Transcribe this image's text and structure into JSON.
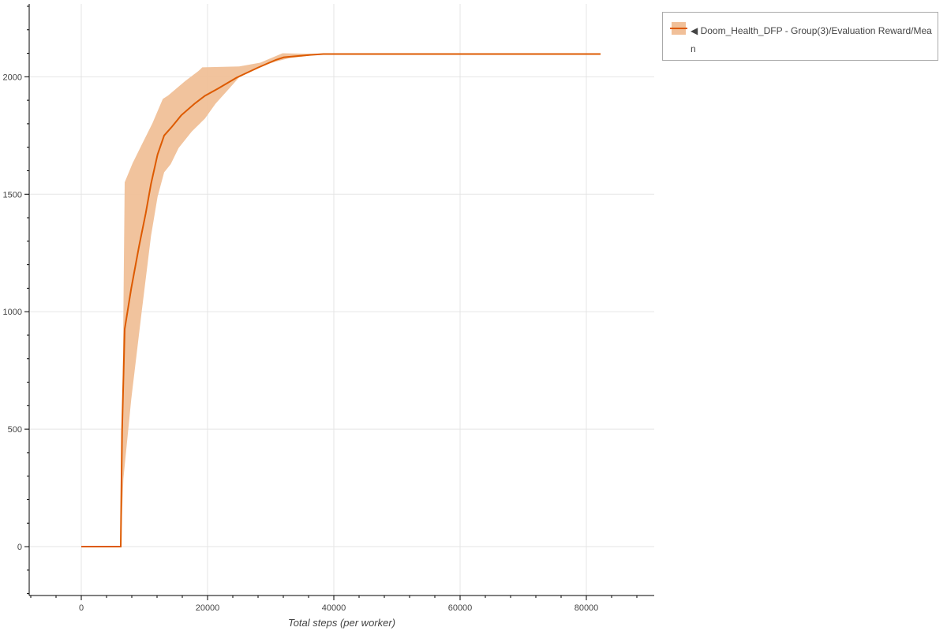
{
  "chart_data": {
    "type": "line",
    "title": "",
    "xlabel": "Total steps (per worker)",
    "ylabel": "",
    "xlim": [
      -8125,
      90750
    ],
    "ylim": [
      -208,
      2310
    ],
    "x_ticks": [
      0,
      20000,
      40000,
      60000,
      80000
    ],
    "x_tick_labels": [
      "0",
      "20000",
      "40000",
      "60000",
      "80000"
    ],
    "y_ticks": [
      0,
      500,
      1000,
      1500,
      2000
    ],
    "y_tick_labels": [
      "0",
      "500",
      "1000",
      "1500",
      "2000"
    ],
    "grid": true,
    "legend_placement": "right-outside-top",
    "colors": {
      "line": "#dd5a00",
      "band": "#f0c098"
    },
    "series": [
      {
        "name": "◀ Doom_Health_DFP - Group(3)/Evaluation Reward/Mean",
        "mean": [
          [
            0,
            0
          ],
          [
            6250,
            0
          ],
          [
            6458,
            489
          ],
          [
            6875,
            926
          ],
          [
            7917,
            1100
          ],
          [
            9167,
            1281
          ],
          [
            10208,
            1419
          ],
          [
            11042,
            1544
          ],
          [
            12083,
            1669
          ],
          [
            13125,
            1750
          ],
          [
            14375,
            1788
          ],
          [
            15833,
            1836
          ],
          [
            17917,
            1885
          ],
          [
            19583,
            1919
          ],
          [
            21667,
            1950
          ],
          [
            24583,
            1996
          ],
          [
            27917,
            2038
          ],
          [
            30833,
            2072
          ],
          [
            32083,
            2083
          ],
          [
            36250,
            2093
          ],
          [
            38333,
            2097
          ],
          [
            82250,
            2097
          ]
        ],
        "upper": [
          [
            6300,
            0
          ],
          [
            6875,
            1551
          ],
          [
            8125,
            1632
          ],
          [
            9583,
            1711
          ],
          [
            11250,
            1801
          ],
          [
            12917,
            1906
          ],
          [
            13750,
            1920
          ],
          [
            16458,
            1982
          ],
          [
            18542,
            2024
          ],
          [
            19167,
            2040
          ],
          [
            25000,
            2044
          ],
          [
            28333,
            2060
          ],
          [
            31875,
            2100
          ],
          [
            38333,
            2097
          ],
          [
            82250,
            2097
          ]
        ],
        "lower": [
          [
            6250,
            0
          ],
          [
            6667,
            288
          ],
          [
            7917,
            628
          ],
          [
            9583,
            1003
          ],
          [
            11042,
            1322
          ],
          [
            12083,
            1489
          ],
          [
            13125,
            1593
          ],
          [
            14167,
            1628
          ],
          [
            15417,
            1697
          ],
          [
            17500,
            1767
          ],
          [
            19583,
            1822
          ],
          [
            21250,
            1885
          ],
          [
            23333,
            1947
          ],
          [
            25417,
            2010
          ],
          [
            28333,
            2044
          ],
          [
            30833,
            2065
          ],
          [
            32917,
            2079
          ],
          [
            37083,
            2093
          ],
          [
            38333,
            2097
          ],
          [
            82250,
            2097
          ]
        ]
      }
    ]
  }
}
